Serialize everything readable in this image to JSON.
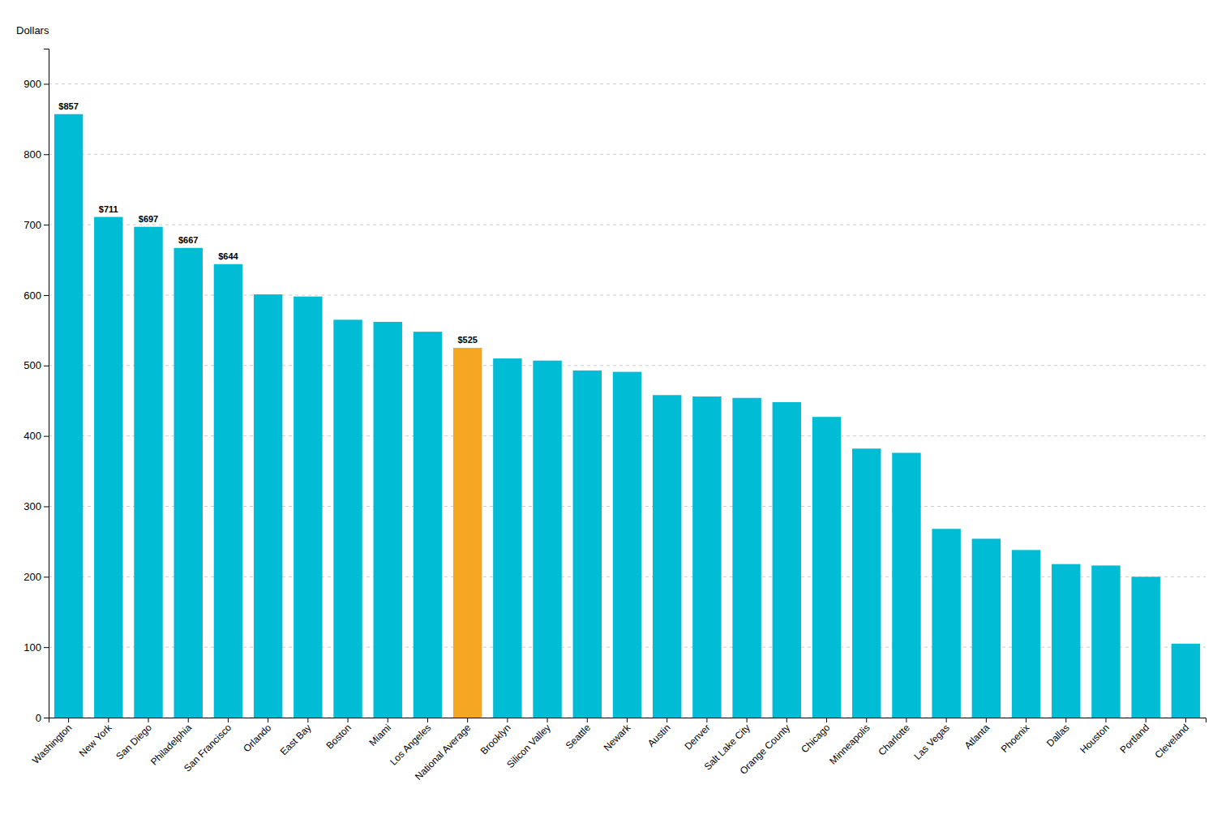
{
  "chart_data": {
    "type": "bar",
    "ylabel": "Dollars",
    "categories": [
      "Washington",
      "New York",
      "San Diego",
      "Philadelphia",
      "San Francisco",
      "Orlando",
      "East Bay",
      "Boston",
      "Miami",
      "Los Angeles",
      "National Average",
      "Brooklyn",
      "Silicon Valley",
      "Seattle",
      "Newark",
      "Austin",
      "Denver",
      "Salt Lake City",
      "Orange County",
      "Chicago",
      "Minneapolis",
      "Charlotte",
      "Las Vegas",
      "Atlanta",
      "Phoenix",
      "Dallas",
      "Houston",
      "Portland",
      "Cleveland"
    ],
    "values": [
      857,
      711,
      697,
      667,
      644,
      601,
      598,
      565,
      562,
      548,
      525,
      510,
      507,
      493,
      491,
      458,
      456,
      454,
      448,
      427,
      382,
      376,
      268,
      254,
      238,
      218,
      216,
      200,
      105
    ],
    "value_labels": [
      "$857",
      "$711",
      "$697",
      "$667",
      "$644",
      null,
      null,
      null,
      null,
      null,
      "$525",
      null,
      null,
      null,
      null,
      null,
      null,
      null,
      null,
      null,
      null,
      null,
      null,
      null,
      null,
      null,
      null,
      null,
      null
    ],
    "data_labels": true,
    "colors": [
      "#00BCD4",
      "#00BCD4",
      "#00BCD4",
      "#00BCD4",
      "#00BCD4",
      "#00BCD4",
      "#00BCD4",
      "#00BCD4",
      "#00BCD4",
      "#00BCD4",
      "#F5A623",
      "#00BCD4",
      "#00BCD4",
      "#00BCD4",
      "#00BCD4",
      "#00BCD4",
      "#00BCD4",
      "#00BCD4",
      "#00BCD4",
      "#00BCD4",
      "#00BCD4",
      "#00BCD4",
      "#00BCD4",
      "#00BCD4",
      "#00BCD4",
      "#00BCD4",
      "#00BCD4",
      "#00BCD4",
      "#00BCD4"
    ],
    "ylim": [
      0,
      950
    ],
    "yticks": [
      0,
      100,
      200,
      300,
      400,
      500,
      600,
      700,
      800,
      900
    ],
    "grid": true
  }
}
